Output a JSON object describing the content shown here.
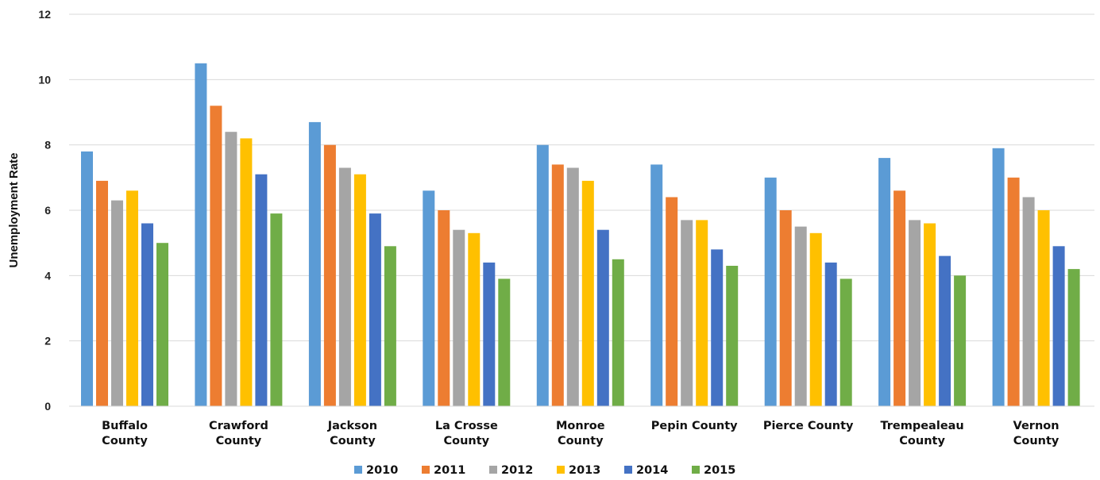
{
  "chart_data": {
    "type": "bar",
    "title": "",
    "xlabel": "",
    "ylabel": "Unemployment Rate",
    "ylim": [
      0,
      12
    ],
    "yticks": [
      0,
      2,
      4,
      6,
      8,
      10,
      12
    ],
    "grid": true,
    "legend_position": "bottom",
    "categories": [
      [
        "Buffalo",
        "County"
      ],
      [
        "Crawford",
        "County"
      ],
      [
        "Jackson",
        "County"
      ],
      [
        "La Crosse",
        "County"
      ],
      [
        "Monroe",
        "County"
      ],
      [
        "Pepin County"
      ],
      [
        "Pierce County"
      ],
      [
        "Trempealeau",
        "County"
      ],
      [
        "Vernon",
        "County"
      ]
    ],
    "series": [
      {
        "name": "2010",
        "color": "#5b9bd5",
        "values": [
          7.8,
          10.5,
          8.7,
          6.6,
          8.0,
          7.4,
          7.0,
          7.6,
          7.9
        ]
      },
      {
        "name": "2011",
        "color": "#ed7d31",
        "values": [
          6.9,
          9.2,
          8.0,
          6.0,
          7.4,
          6.4,
          6.0,
          6.6,
          7.0
        ]
      },
      {
        "name": "2012",
        "color": "#a5a5a5",
        "values": [
          6.3,
          8.4,
          7.3,
          5.4,
          7.3,
          5.7,
          5.5,
          5.7,
          6.4
        ]
      },
      {
        "name": "2013",
        "color": "#ffc000",
        "values": [
          6.6,
          8.2,
          7.1,
          5.3,
          6.9,
          5.7,
          5.3,
          5.6,
          6.0
        ]
      },
      {
        "name": "2014",
        "color": "#4472c4",
        "values": [
          5.6,
          7.1,
          5.9,
          4.4,
          5.4,
          4.8,
          4.4,
          4.6,
          4.9
        ]
      },
      {
        "name": "2015",
        "color": "#70ad47",
        "values": [
          5.0,
          5.9,
          4.9,
          3.9,
          4.5,
          4.3,
          3.9,
          4.0,
          4.2
        ]
      }
    ]
  }
}
